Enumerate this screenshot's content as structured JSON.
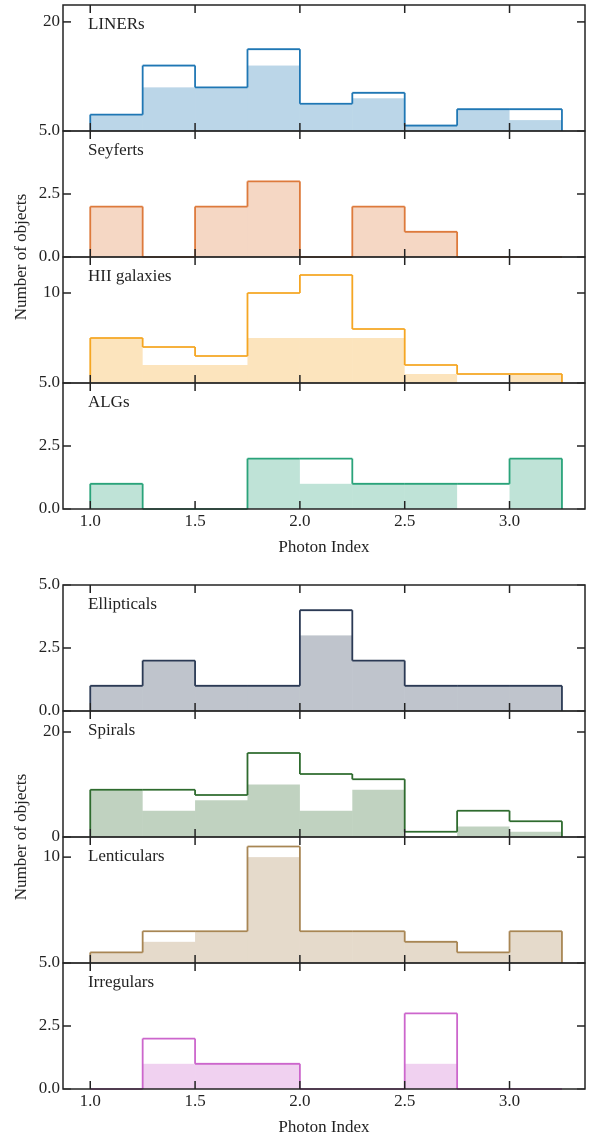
{
  "chart_data": [
    {
      "type": "histogram",
      "label": "LINERs",
      "bins": [
        1.0,
        1.25,
        1.5,
        1.75,
        2.0,
        2.25,
        2.5,
        2.75,
        3.0,
        3.25
      ],
      "series": [
        {
          "color": "#1f77b4",
          "style": "step",
          "values": [
            3,
            12,
            8,
            15,
            5,
            7,
            1,
            4,
            4
          ]
        },
        {
          "color": "#1f77b4",
          "style": "filled",
          "values": [
            3,
            8,
            8,
            12,
            5,
            6,
            1,
            4,
            2
          ]
        }
      ],
      "xlim": [
        0.87,
        3.36
      ],
      "xticks": [
        {
          "value": 1,
          "label": "1.0"
        },
        1.5,
        {
          "value": 2,
          "label": "2.0"
        },
        2.5,
        {
          "value": 3,
          "label": "3.0"
        }
      ],
      "ylim": [
        0,
        23.1
      ],
      "yticks": [
        20
      ],
      "ylabel": "Number of objects"
    },
    {
      "type": "histogram",
      "label": "Seyferts",
      "bins": [
        1.0,
        1.25,
        1.5,
        1.75,
        2.0,
        2.25,
        2.5,
        2.75,
        3.0,
        3.25
      ],
      "series": [
        {
          "color": "#dd7a3c",
          "style": "step",
          "values": [
            2,
            0,
            2,
            3,
            0,
            2,
            1,
            0,
            0
          ]
        },
        {
          "color": "#dd7a3c",
          "style": "filled",
          "values": [
            2,
            0,
            2,
            3,
            0,
            2,
            1,
            0,
            0
          ]
        }
      ],
      "xlim": [
        0.87,
        3.36
      ],
      "xticks": [
        {
          "value": 1,
          "label": "1.0"
        },
        1.5,
        {
          "value": 2,
          "label": "2.0"
        },
        2.5,
        {
          "value": 3,
          "label": "3.0"
        }
      ],
      "ylim": [
        0,
        5
      ],
      "yticks": [
        {
          "value": 0,
          "label": "0.0"
        },
        2.5,
        {
          "value": 5,
          "label": "5.0"
        }
      ]
    },
    {
      "type": "histogram",
      "label": "HII galaxies",
      "bins": [
        1.0,
        1.25,
        1.5,
        1.75,
        2.0,
        2.25,
        2.5,
        2.75,
        3.0,
        3.25
      ],
      "series": [
        {
          "color": "#f5a623",
          "style": "step",
          "values": [
            5,
            4,
            3,
            10,
            12,
            6,
            2,
            1,
            1
          ]
        },
        {
          "color": "#f5a623",
          "style": "filled",
          "values": [
            5,
            2,
            2,
            5,
            5,
            5,
            1,
            0,
            1
          ]
        }
      ],
      "xlim": [
        0.87,
        3.36
      ],
      "xticks": [
        {
          "value": 1,
          "label": "1.0"
        },
        1.5,
        {
          "value": 2,
          "label": "2.0"
        },
        2.5,
        {
          "value": 3,
          "label": "3.0"
        }
      ],
      "ylim": [
        0,
        14
      ],
      "yticks": [
        10
      ]
    },
    {
      "type": "histogram",
      "label": "ALGs",
      "bins": [
        1.0,
        1.25,
        1.5,
        1.75,
        2.0,
        2.25,
        2.5,
        2.75,
        3.0,
        3.25
      ],
      "series": [
        {
          "color": "#2aa37a",
          "style": "step",
          "values": [
            1,
            0,
            0,
            2,
            2,
            1,
            1,
            1,
            2
          ]
        },
        {
          "color": "#2aa37a",
          "style": "filled",
          "values": [
            1,
            0,
            0,
            2,
            1,
            1,
            1,
            0,
            2
          ]
        }
      ],
      "xlim": [
        0.87,
        3.36
      ],
      "xticks": [
        {
          "value": 1,
          "label": "1.0"
        },
        1.5,
        {
          "value": 2,
          "label": "2.0"
        },
        2.5,
        {
          "value": 3,
          "label": "3.0"
        }
      ],
      "ylim": [
        0,
        5
      ],
      "yticks": [
        {
          "value": 0,
          "label": "0.0"
        },
        2.5,
        {
          "value": 5,
          "label": "5.0"
        }
      ],
      "xlabel": "Photon Index"
    },
    {
      "type": "histogram",
      "label": "Ellipticals",
      "bins": [
        1.0,
        1.25,
        1.5,
        1.75,
        2.0,
        2.25,
        2.5,
        2.75,
        3.0,
        3.25
      ],
      "series": [
        {
          "color": "#2b3a55",
          "style": "step",
          "values": [
            1,
            2,
            1,
            1,
            4,
            2,
            1,
            1,
            1
          ]
        },
        {
          "color": "#2b3a55",
          "style": "filled",
          "values": [
            1,
            2,
            1,
            1,
            3,
            2,
            1,
            1,
            1
          ]
        }
      ],
      "xlim": [
        0.87,
        3.36
      ],
      "xticks": [
        {
          "value": 1,
          "label": "1.0"
        },
        1.5,
        {
          "value": 2,
          "label": "2.0"
        },
        2.5,
        {
          "value": 3,
          "label": "3.0"
        }
      ],
      "ylim": [
        0,
        5
      ],
      "yticks": [
        {
          "value": 0,
          "label": "0.0"
        },
        2.5,
        {
          "value": 5,
          "label": "5.0"
        }
      ],
      "ylabel": "Number of objects"
    },
    {
      "type": "histogram",
      "label": "Spirals",
      "bins": [
        1.0,
        1.25,
        1.5,
        1.75,
        2.0,
        2.25,
        2.5,
        2.75,
        3.0,
        3.25
      ],
      "series": [
        {
          "color": "#2e6b2e",
          "style": "step",
          "values": [
            9,
            9,
            8,
            16,
            12,
            11,
            1,
            5,
            3
          ]
        },
        {
          "color": "#2e6b2e",
          "style": "filled",
          "values": [
            9,
            5,
            7,
            10,
            5,
            9,
            0,
            2,
            1
          ]
        }
      ],
      "xlim": [
        0.87,
        3.36
      ],
      "xticks": [
        {
          "value": 1,
          "label": "1.0"
        },
        1.5,
        {
          "value": 2,
          "label": "2.0"
        },
        2.5,
        {
          "value": 3,
          "label": "3.0"
        }
      ],
      "ylim": [
        0,
        24
      ],
      "yticks": [
        0,
        20
      ]
    },
    {
      "type": "histogram",
      "label": "Lenticulars",
      "bins": [
        1.0,
        1.25,
        1.5,
        1.75,
        2.0,
        2.25,
        2.5,
        2.75,
        3.0,
        3.25
      ],
      "series": [
        {
          "color": "#a88654",
          "style": "step",
          "values": [
            1,
            3,
            3,
            11,
            3,
            3,
            2,
            1,
            3
          ]
        },
        {
          "color": "#a88654",
          "style": "filled",
          "values": [
            1,
            2,
            3,
            10,
            3,
            3,
            2,
            1,
            3
          ]
        }
      ],
      "xlim": [
        0.87,
        3.36
      ],
      "xticks": [
        {
          "value": 1,
          "label": "1.0"
        },
        1.5,
        {
          "value": 2,
          "label": "2.0"
        },
        2.5,
        {
          "value": 3,
          "label": "3.0"
        }
      ],
      "ylim": [
        0,
        11.9
      ],
      "yticks": [
        10
      ]
    },
    {
      "type": "histogram",
      "label": "Irregulars",
      "bins": [
        1.0,
        1.25,
        1.5,
        1.75,
        2.0,
        2.25,
        2.5,
        2.75,
        3.0,
        3.25
      ],
      "series": [
        {
          "color": "#cc66cc",
          "style": "step",
          "values": [
            0,
            2,
            1,
            1,
            0,
            0,
            3,
            0,
            0
          ]
        },
        {
          "color": "#cc66cc",
          "style": "filled",
          "values": [
            0,
            1,
            1,
            1,
            0,
            0,
            1,
            0,
            0
          ]
        }
      ],
      "xlim": [
        0.87,
        3.36
      ],
      "xticks": [
        {
          "value": 1,
          "label": "1.0"
        },
        1.5,
        {
          "value": 2,
          "label": "2.0"
        },
        2.5,
        {
          "value": 3,
          "label": "3.0"
        }
      ],
      "ylim": [
        0,
        5
      ],
      "yticks": [
        {
          "value": 0,
          "label": "0.0"
        },
        2.5,
        {
          "value": 5,
          "label": "5.0"
        }
      ],
      "xlabel": "Photon Index"
    }
  ]
}
